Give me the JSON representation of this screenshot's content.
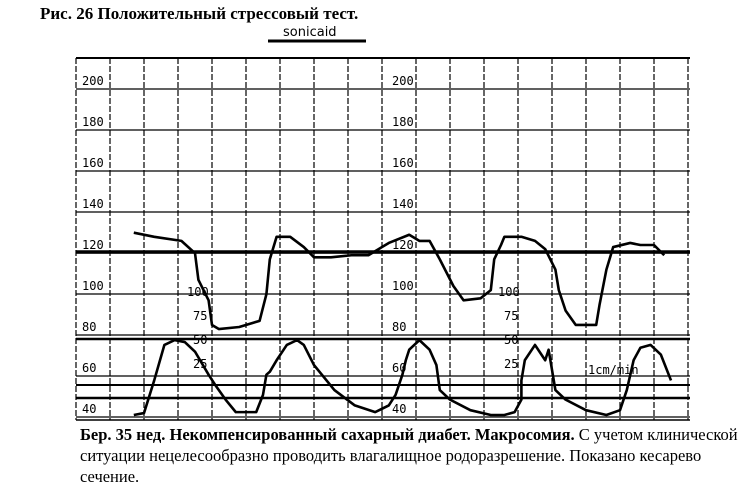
{
  "figure": {
    "title": "Рис. 26 Положительный стрессовый тест.",
    "caption_bold": "Бер. 35 нед. Некомпенсированный сахарный диабет. Макросомия.",
    "caption_text": " С учетом клинической ситуации нецелесообразно проводить влагалищное родоразрешение. Показано кесарево сечение."
  },
  "chart_data": {
    "type": "line",
    "device_label": "sonicaid",
    "paper_speed_label": "1cm/min",
    "fhr_ticks": [
      "200",
      "180",
      "160",
      "140",
      "120",
      "100",
      "80",
      "60",
      "40"
    ],
    "uc_ticks": [
      "100",
      "75",
      "50",
      "25"
    ],
    "fhr_range": [
      40,
      200
    ],
    "uc_range": [
      0,
      100
    ],
    "grid": true,
    "series": [
      {
        "points": [
          [
            1.7,
            126
          ],
          [
            2.3,
            124
          ],
          [
            3.1,
            122
          ],
          [
            3.5,
            116
          ],
          [
            3.6,
            103
          ],
          [
            3.9,
            93
          ],
          [
            4.0,
            81
          ],
          [
            4.2,
            79
          ],
          [
            4.8,
            80
          ],
          [
            5.4,
            83
          ],
          [
            5.6,
            96
          ],
          [
            5.7,
            113
          ],
          [
            5.9,
            124
          ],
          [
            6.3,
            124
          ],
          [
            6.7,
            119
          ],
          [
            7.0,
            114
          ],
          [
            7.5,
            114
          ],
          [
            8.1,
            115
          ],
          [
            8.6,
            115
          ],
          [
            8.9,
            118
          ],
          [
            9.2,
            121
          ],
          [
            9.8,
            125
          ],
          [
            10.1,
            122
          ],
          [
            10.4,
            122
          ],
          [
            10.7,
            113
          ],
          [
            11.1,
            100
          ],
          [
            11.4,
            93
          ],
          [
            11.9,
            94
          ],
          [
            12.2,
            98
          ],
          [
            12.3,
            113
          ],
          [
            12.5,
            120
          ],
          [
            12.6,
            124
          ],
          [
            13.1,
            124
          ],
          [
            13.5,
            122
          ],
          [
            13.8,
            118
          ],
          [
            14.1,
            108
          ],
          [
            14.2,
            98
          ],
          [
            14.4,
            88
          ],
          [
            14.7,
            81
          ],
          [
            15.3,
            81
          ],
          [
            15.4,
            91
          ],
          [
            15.6,
            108
          ],
          [
            15.8,
            119
          ],
          [
            16.3,
            121
          ],
          [
            16.6,
            120
          ],
          [
            17.0,
            120
          ],
          [
            17.3,
            115
          ]
        ]
      },
      {
        "points": [
          [
            1.7,
            0
          ],
          [
            2.0,
            2
          ],
          [
            2.3,
            36
          ],
          [
            2.6,
            73
          ],
          [
            2.9,
            78
          ],
          [
            3.2,
            76
          ],
          [
            3.5,
            66
          ],
          [
            3.9,
            42
          ],
          [
            4.1,
            31
          ],
          [
            4.4,
            16
          ],
          [
            4.7,
            3
          ],
          [
            5.3,
            3
          ],
          [
            5.5,
            21
          ],
          [
            5.6,
            42
          ],
          [
            5.7,
            45
          ],
          [
            5.9,
            57
          ],
          [
            6.2,
            73
          ],
          [
            6.5,
            78
          ],
          [
            6.7,
            73
          ],
          [
            7.0,
            52
          ],
          [
            7.6,
            26
          ],
          [
            8.2,
            10
          ],
          [
            8.8,
            3
          ],
          [
            9.2,
            10
          ],
          [
            9.4,
            21
          ],
          [
            9.6,
            42
          ],
          [
            9.7,
            57
          ],
          [
            9.8,
            68
          ],
          [
            10.1,
            78
          ],
          [
            10.4,
            68
          ],
          [
            10.6,
            52
          ],
          [
            10.7,
            26
          ],
          [
            11.0,
            16
          ],
          [
            11.6,
            5
          ],
          [
            12.2,
            0
          ],
          [
            12.6,
            0
          ],
          [
            12.9,
            3
          ],
          [
            13.1,
            16
          ],
          [
            13.1,
            36
          ],
          [
            13.2,
            57
          ],
          [
            13.5,
            73
          ],
          [
            13.8,
            57
          ],
          [
            13.9,
            68
          ],
          [
            14.1,
            26
          ],
          [
            14.4,
            16
          ],
          [
            15.0,
            5
          ],
          [
            15.6,
            0
          ],
          [
            16.0,
            5
          ],
          [
            16.2,
            26
          ],
          [
            16.4,
            57
          ],
          [
            16.6,
            70
          ],
          [
            16.9,
            73
          ],
          [
            17.2,
            63
          ],
          [
            17.5,
            36
          ]
        ]
      }
    ]
  }
}
